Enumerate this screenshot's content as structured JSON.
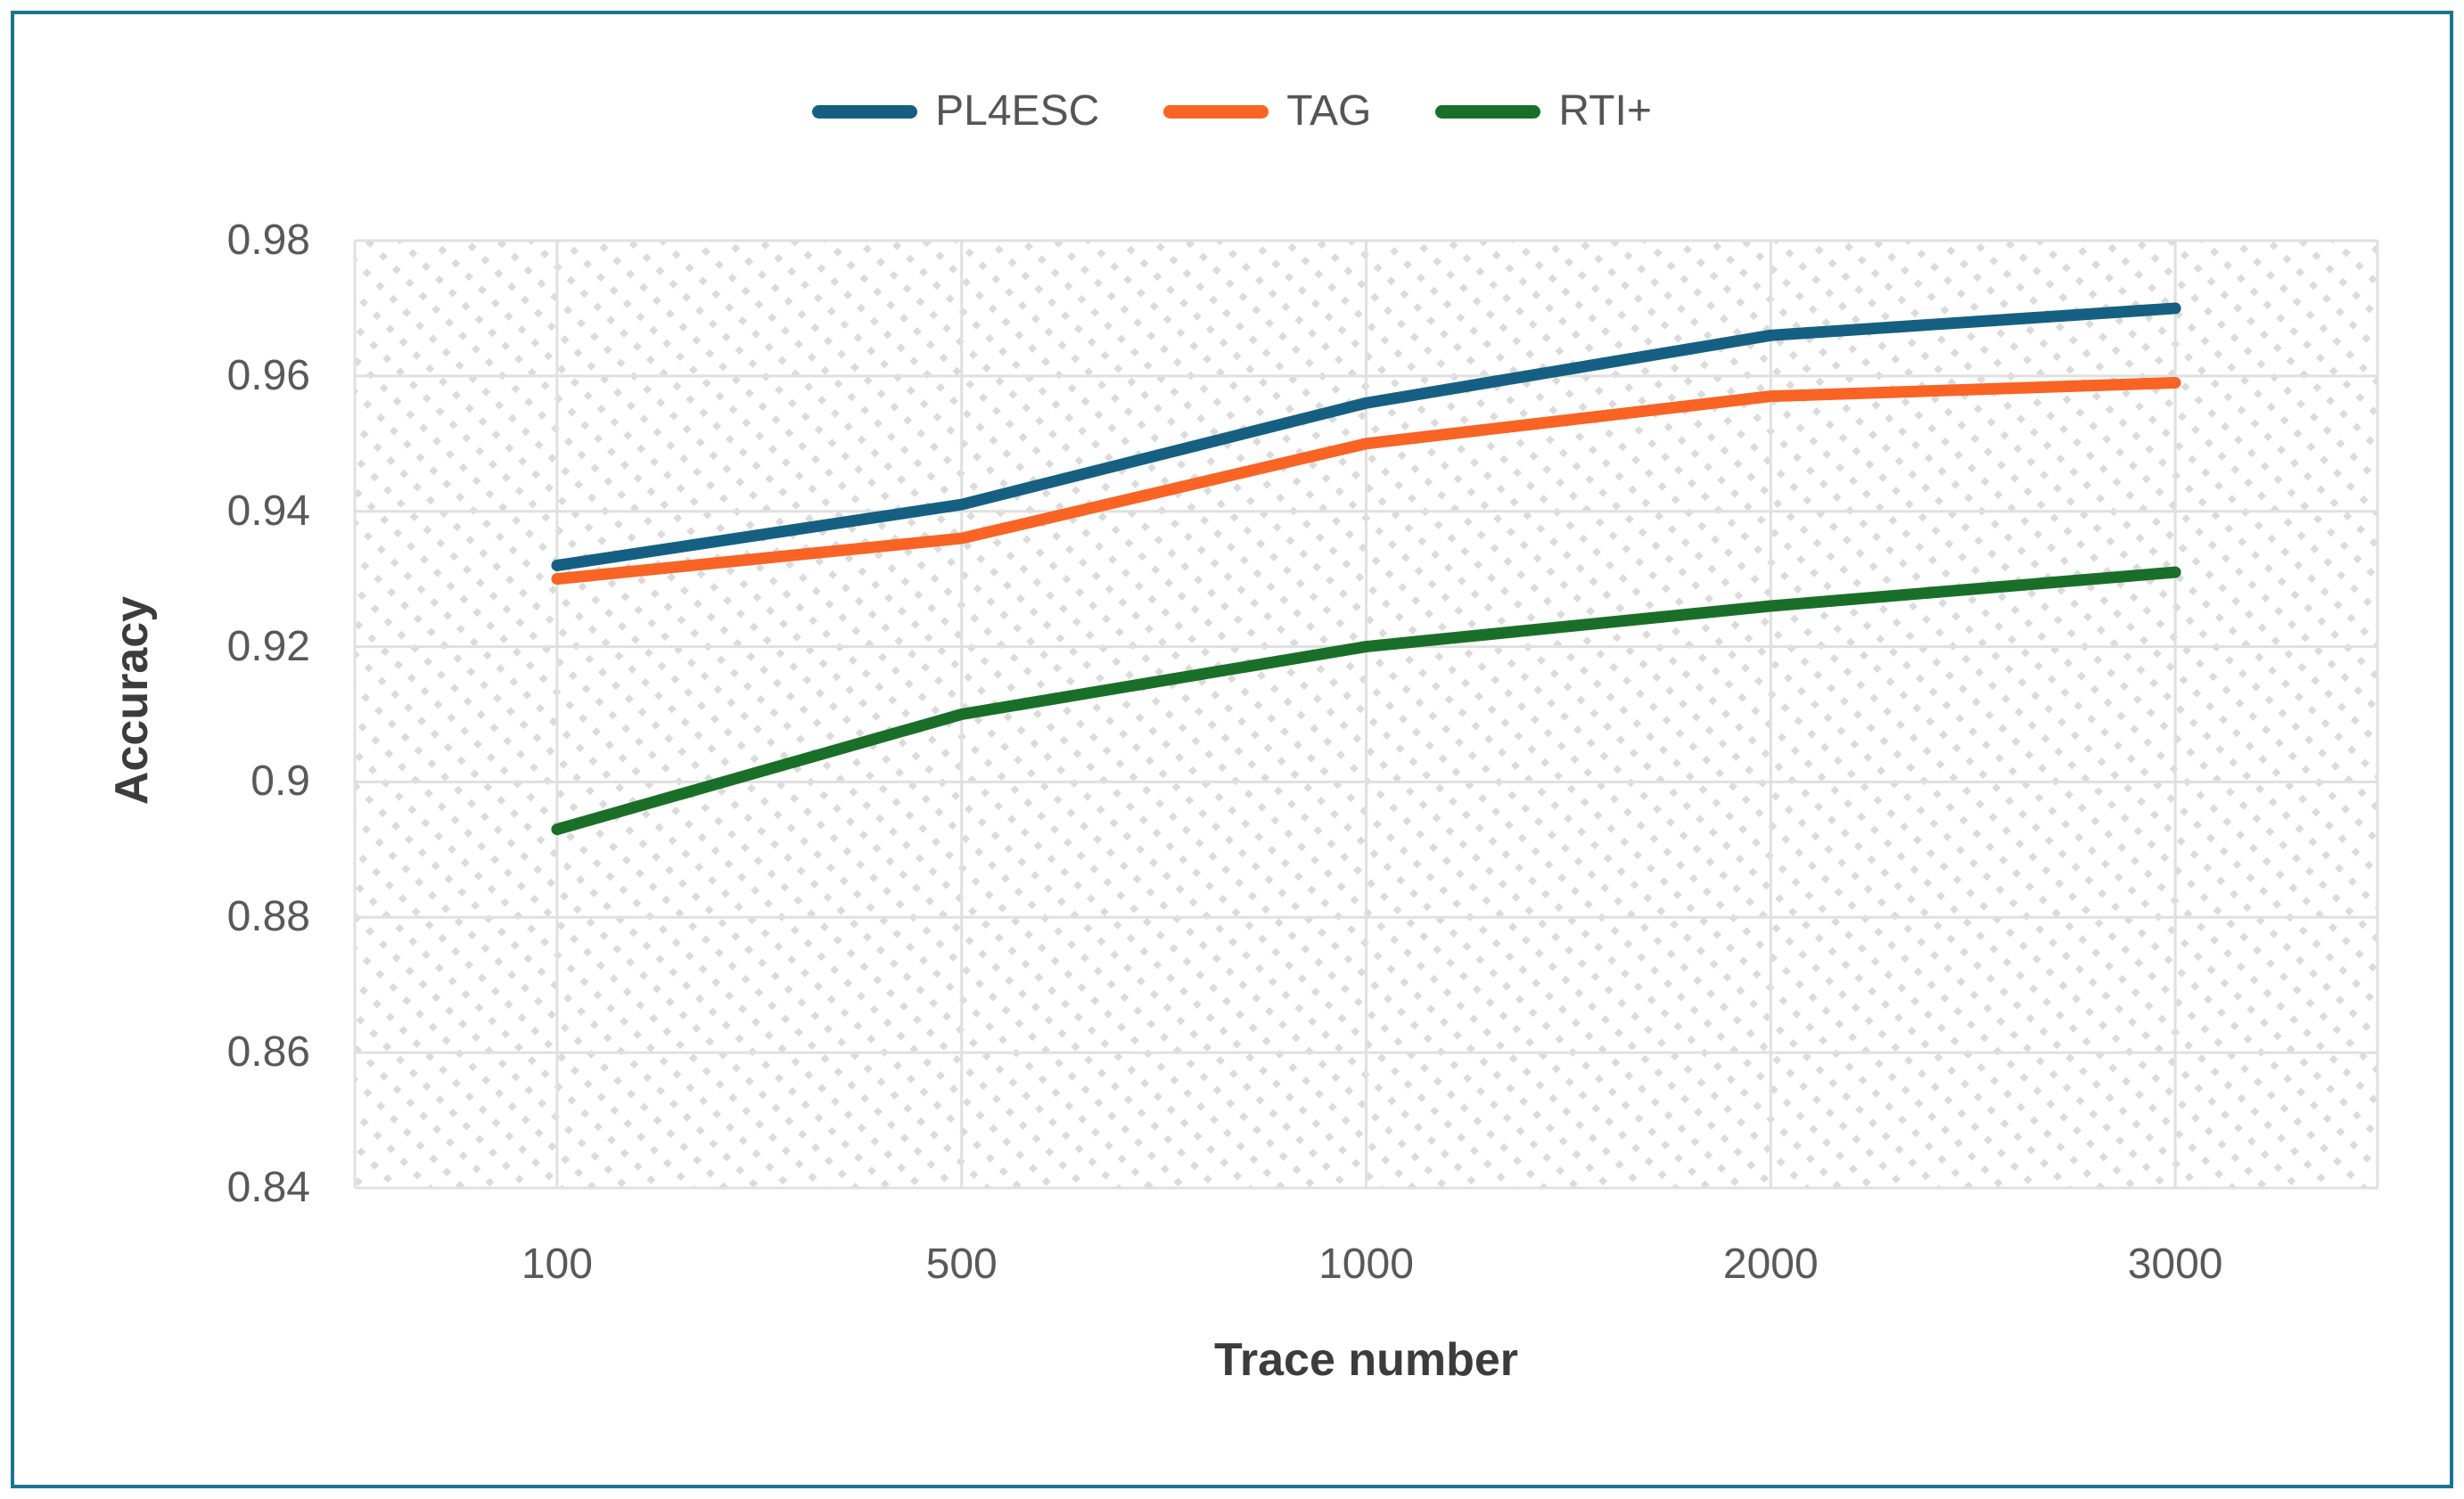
{
  "figure": {
    "border_color": "#1B7397",
    "background_color": "#FFFFFF",
    "gridline_color": "#E0E0E0",
    "hatch_dot_color": "#DBDBDB"
  },
  "chart_data": {
    "type": "line",
    "title": "",
    "categories": [
      "100",
      "500",
      "1000",
      "2000",
      "3000"
    ],
    "series": [
      {
        "name": "PL4ESC",
        "color": "#156082",
        "values": [
          0.932,
          0.941,
          0.956,
          0.966,
          0.97
        ]
      },
      {
        "name": "TAG",
        "color": "#F96323",
        "values": [
          0.93,
          0.936,
          0.95,
          0.957,
          0.959
        ]
      },
      {
        "name": "RTI+",
        "color": "#196F28",
        "values": [
          0.893,
          0.91,
          0.92,
          0.926,
          0.931
        ]
      }
    ],
    "xlabel": "Trace number",
    "ylabel": "Accuracy",
    "ylim": [
      0.84,
      0.98
    ],
    "ytick_step": 0.02,
    "ytick_labels": [
      "0.98",
      "0.96",
      "0.94",
      "0.92",
      "0.9",
      "0.88",
      "0.86",
      "0.84"
    ],
    "grid": true,
    "legend_position": "top-center",
    "plot_area_pattern": "light-diagonal-dotted-hatch"
  }
}
